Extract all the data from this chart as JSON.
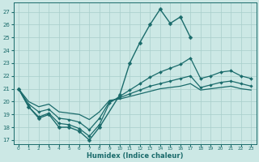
{
  "xlabel": "Humidex (Indice chaleur)",
  "background_color": "#cce8e5",
  "grid_color": "#a8ceca",
  "line_color": "#1a6b6b",
  "xlim": [
    -0.5,
    23.5
  ],
  "ylim": [
    16.7,
    27.7
  ],
  "yticks": [
    17,
    18,
    19,
    20,
    21,
    22,
    23,
    24,
    25,
    26,
    27
  ],
  "xticks": [
    0,
    1,
    2,
    3,
    4,
    5,
    6,
    7,
    8,
    9,
    10,
    11,
    12,
    13,
    14,
    15,
    16,
    17,
    18,
    19,
    20,
    21,
    22,
    23
  ],
  "series": [
    {
      "x": [
        0,
        1,
        2,
        3,
        4,
        5,
        6,
        7,
        8,
        10,
        11,
        12,
        13,
        14,
        15,
        16,
        17
      ],
      "y": [
        21.0,
        19.6,
        18.7,
        19.0,
        18.0,
        18.0,
        17.7,
        17.0,
        18.0,
        20.5,
        23.0,
        24.6,
        26.0,
        27.2,
        26.1,
        26.6,
        25.0
      ],
      "marker": "D",
      "markersize": 2.5,
      "linewidth": 1.0
    },
    {
      "x": [
        0,
        1,
        2,
        3,
        4,
        5,
        6,
        7,
        8,
        9,
        10,
        11,
        12,
        13,
        14,
        15,
        16,
        17,
        18,
        19,
        20,
        21,
        22,
        23
      ],
      "y": [
        21.0,
        19.6,
        18.8,
        19.1,
        18.3,
        18.2,
        17.9,
        17.3,
        18.2,
        19.9,
        20.4,
        20.9,
        21.4,
        21.9,
        22.3,
        22.6,
        22.9,
        23.4,
        21.8,
        22.0,
        22.3,
        22.4,
        22.0,
        21.8
      ],
      "marker": "D",
      "markersize": 2.0,
      "linewidth": 0.9
    },
    {
      "x": [
        0,
        1,
        2,
        3,
        4,
        5,
        6,
        7,
        8,
        9,
        10,
        11,
        12,
        13,
        14,
        15,
        16,
        17,
        18,
        19,
        20,
        21,
        22,
        23
      ],
      "y": [
        21.0,
        19.8,
        19.2,
        19.4,
        18.7,
        18.6,
        18.4,
        17.8,
        18.7,
        20.0,
        20.3,
        20.6,
        20.9,
        21.2,
        21.4,
        21.6,
        21.8,
        22.0,
        21.1,
        21.3,
        21.5,
        21.6,
        21.4,
        21.2
      ],
      "marker": "D",
      "markersize": 1.8,
      "linewidth": 0.9
    },
    {
      "x": [
        0,
        1,
        2,
        3,
        4,
        5,
        6,
        7,
        8,
        9,
        10,
        11,
        12,
        13,
        14,
        15,
        16,
        17,
        18,
        19,
        20,
        21,
        22,
        23
      ],
      "y": [
        21.0,
        20.0,
        19.6,
        19.8,
        19.2,
        19.1,
        19.0,
        18.6,
        19.2,
        20.1,
        20.2,
        20.4,
        20.6,
        20.8,
        21.0,
        21.1,
        21.2,
        21.4,
        20.9,
        21.0,
        21.1,
        21.2,
        21.0,
        20.9
      ],
      "marker": null,
      "markersize": 0,
      "linewidth": 0.9
    }
  ]
}
